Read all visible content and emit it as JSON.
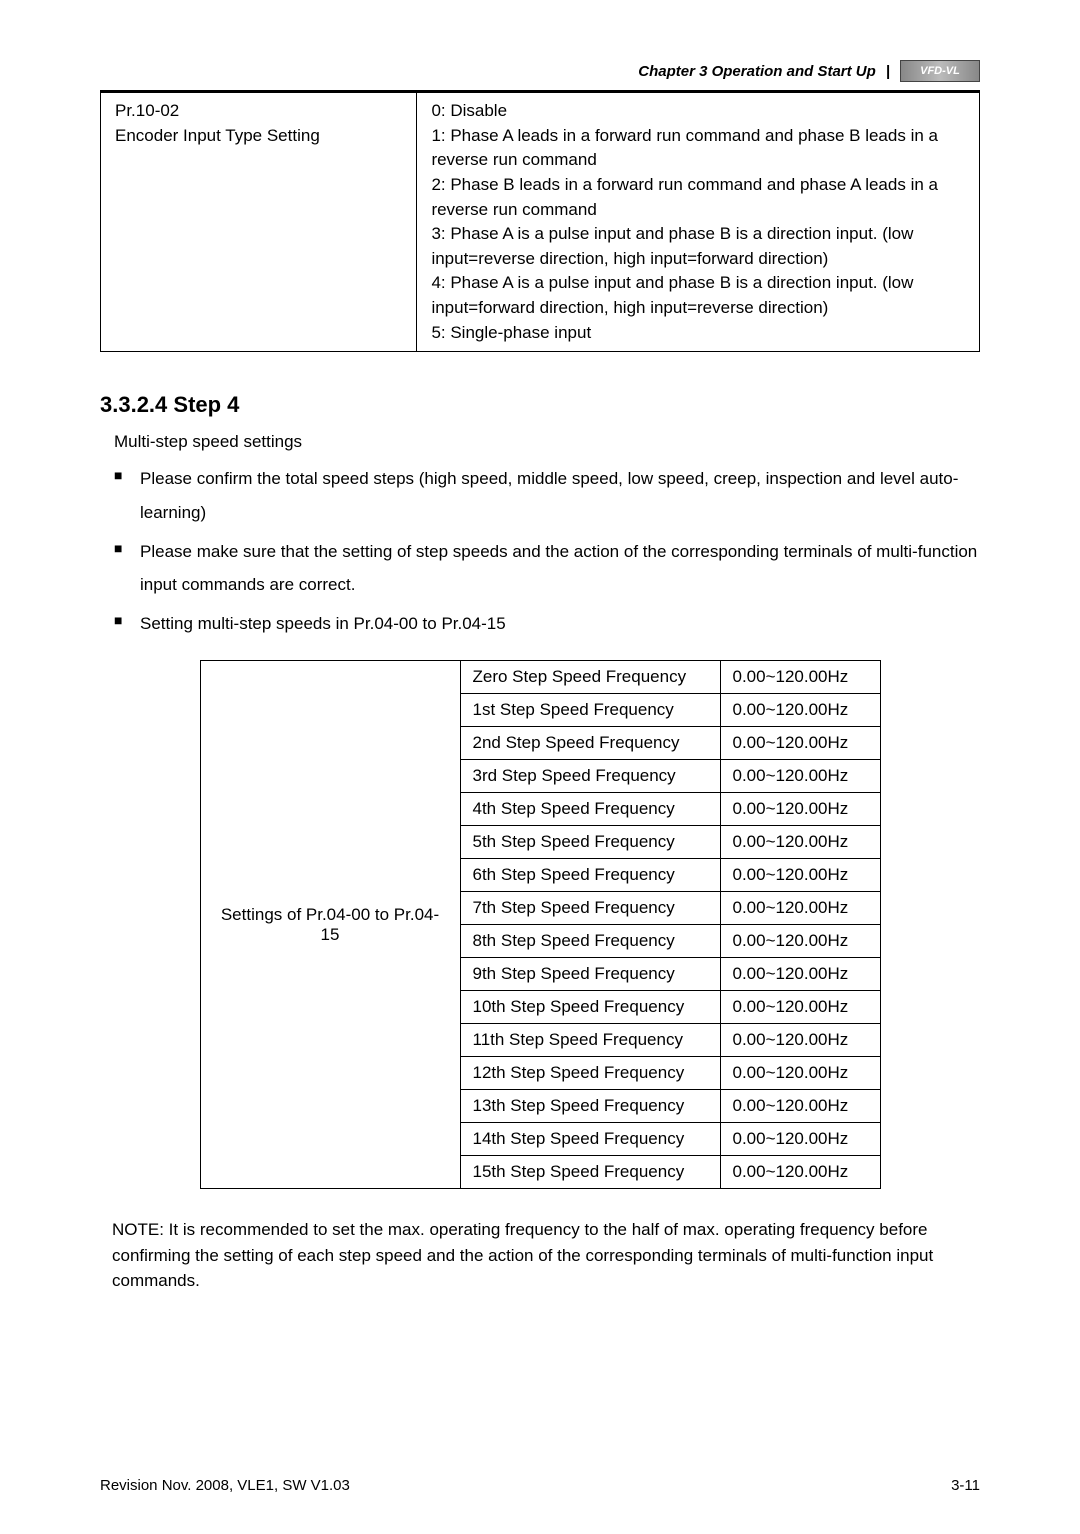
{
  "header": {
    "chapter_text": "Chapter 3 Operation and Start Up",
    "logo_text": "VFD-VL"
  },
  "param_table": {
    "left_lines": [
      "Pr.10-02",
      "Encoder Input Type Setting"
    ],
    "right_lines": [
      "0: Disable",
      "1: Phase A leads in a forward run command and phase B leads in a reverse run command",
      "2: Phase B leads in a forward run command and phase A leads in a reverse run command",
      "3: Phase A is a pulse input and phase B is a direction input. (low input=reverse direction, high input=forward direction)",
      "4: Phase A is a pulse input and phase B is a direction input. (low input=forward direction, high input=reverse direction)",
      "5: Single-phase input"
    ]
  },
  "section": {
    "heading": "3.3.2.4 Step 4",
    "intro": "Multi-step speed settings",
    "bullets": [
      "Please confirm the total speed steps (high speed, middle speed, low speed, creep, inspection and level auto-learning)",
      "Please make sure that the setting of step speeds and the action of the corresponding terminals of multi-function input commands are correct.",
      "Setting multi-step speeds in Pr.04-00 to Pr.04-15"
    ]
  },
  "freq_table": {
    "left_label": "Settings of Pr.04-00 to Pr.04-15",
    "range": "0.00~120.00Hz",
    "rows": [
      "Zero Step Speed Frequency",
      "1st Step Speed Frequency",
      "2nd Step Speed Frequency",
      "3rd Step Speed Frequency",
      "4th Step Speed Frequency",
      "5th Step Speed Frequency",
      "6th Step Speed Frequency",
      "7th Step Speed Frequency",
      "8th Step Speed Frequency",
      "9th Step Speed Frequency",
      "10th Step Speed Frequency",
      "11th Step Speed Frequency",
      "12th Step Speed Frequency",
      "13th Step Speed Frequency",
      "14th Step Speed Frequency",
      "15th Step Speed Frequency"
    ]
  },
  "note": "NOTE: It is recommended to set the max. operating frequency to the half of max. operating frequency before confirming the setting of each step speed and the action of the corresponding terminals of multi-function input commands.",
  "footer": {
    "left": "Revision Nov. 2008, VLE1, SW V1.03",
    "right": "3-11"
  },
  "styles": {
    "body_font_size": 17,
    "heading_font_size": 22,
    "border_color": "#000000",
    "text_color": "#000000",
    "background_color": "#ffffff"
  }
}
